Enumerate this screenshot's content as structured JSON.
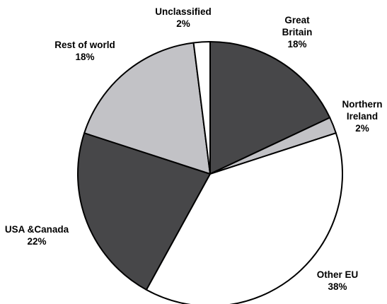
{
  "chart_data": {
    "type": "pie",
    "slices": [
      {
        "label": [
          "Great",
          "Britain"
        ],
        "value": 18,
        "value_label": "18%",
        "color": "#474749"
      },
      {
        "label": [
          "Northern",
          "Ireland"
        ],
        "value": 2,
        "value_label": "2%",
        "color": "#c2c2c6"
      },
      {
        "label": [
          "Other EU"
        ],
        "value": 38,
        "value_label": "38%",
        "color": "#ffffff"
      },
      {
        "label": [
          "USA &Canada"
        ],
        "value": 22,
        "value_label": "22%",
        "color": "#474749"
      },
      {
        "label": [
          "Rest of world"
        ],
        "value": 18,
        "value_label": "18%",
        "color": "#c2c2c6"
      },
      {
        "label": [
          "Unclassified"
        ],
        "value": 2,
        "value_label": "2%",
        "color": "#ffffff"
      }
    ],
    "legend": "none"
  }
}
